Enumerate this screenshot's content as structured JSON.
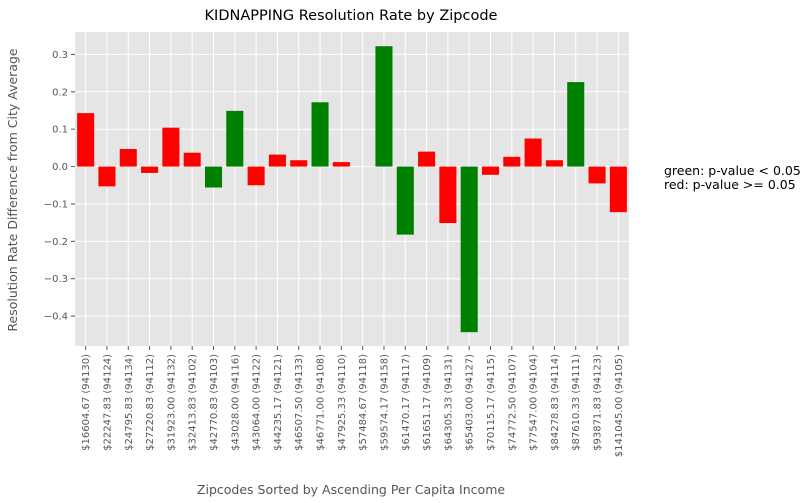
{
  "chart_data": {
    "type": "bar",
    "title": "KIDNAPPING Resolution Rate by Zipcode",
    "xlabel": "Zipcodes Sorted by Ascending Per Capita Income",
    "ylabel": "Resolution Rate Difference from City Average",
    "ylim": [
      -0.48,
      0.36
    ],
    "yticks": [
      -0.4,
      -0.3,
      -0.2,
      -0.1,
      0.0,
      0.1,
      0.2,
      0.3
    ],
    "ytick_labels": [
      "−0.4",
      "−0.3",
      "−0.2",
      "−0.1",
      "0.0",
      "0.1",
      "0.2",
      "0.3"
    ],
    "grid": true,
    "categories": [
      "$16604.67  (94130)",
      "$22247.83  (94124)",
      "$24795.83  (94134)",
      "$27220.83  (94112)",
      "$31923.00  (94132)",
      "$32413.83  (94102)",
      "$42770.83  (94103)",
      "$43028.00  (94116)",
      "$43064.00  (94122)",
      "$44235.17  (94121)",
      "$46507.50  (94133)",
      "$46771.00  (94108)",
      "$47925.33  (94110)",
      "$57484.67  (94118)",
      "$59574.17  (94158)",
      "$61470.17  (94117)",
      "$61651.17  (94109)",
      "$64305.33  (94131)",
      "$65403.00  (94127)",
      "$70115.17  (94115)",
      "$74772.50  (94107)",
      "$77547.00  (94104)",
      "$84278.83  (94114)",
      "$87610.33  (94111)",
      "$93871.83  (94123)",
      "$141045.00  (94105)"
    ],
    "values": [
      0.143,
      -0.053,
      0.047,
      -0.017,
      0.104,
      0.037,
      -0.056,
      0.149,
      -0.05,
      0.032,
      0.017,
      0.172,
      0.012,
      0.0,
      0.322,
      -0.182,
      0.04,
      -0.151,
      -0.443,
      -0.022,
      0.026,
      0.075,
      0.017,
      0.226,
      -0.045,
      -0.122
    ],
    "significant": [
      false,
      false,
      false,
      false,
      false,
      false,
      true,
      true,
      false,
      false,
      false,
      true,
      false,
      false,
      true,
      true,
      false,
      false,
      true,
      false,
      false,
      false,
      false,
      true,
      false,
      false
    ],
    "colors": {
      "significant": "#008000",
      "not_significant": "#ff0000",
      "plot_background": "#e5e5e5",
      "grid": "#ffffff",
      "tick_text": "#555555"
    }
  },
  "notes": {
    "green": "green: p-value < 0.05",
    "red": "red: p-value >= 0.05"
  }
}
